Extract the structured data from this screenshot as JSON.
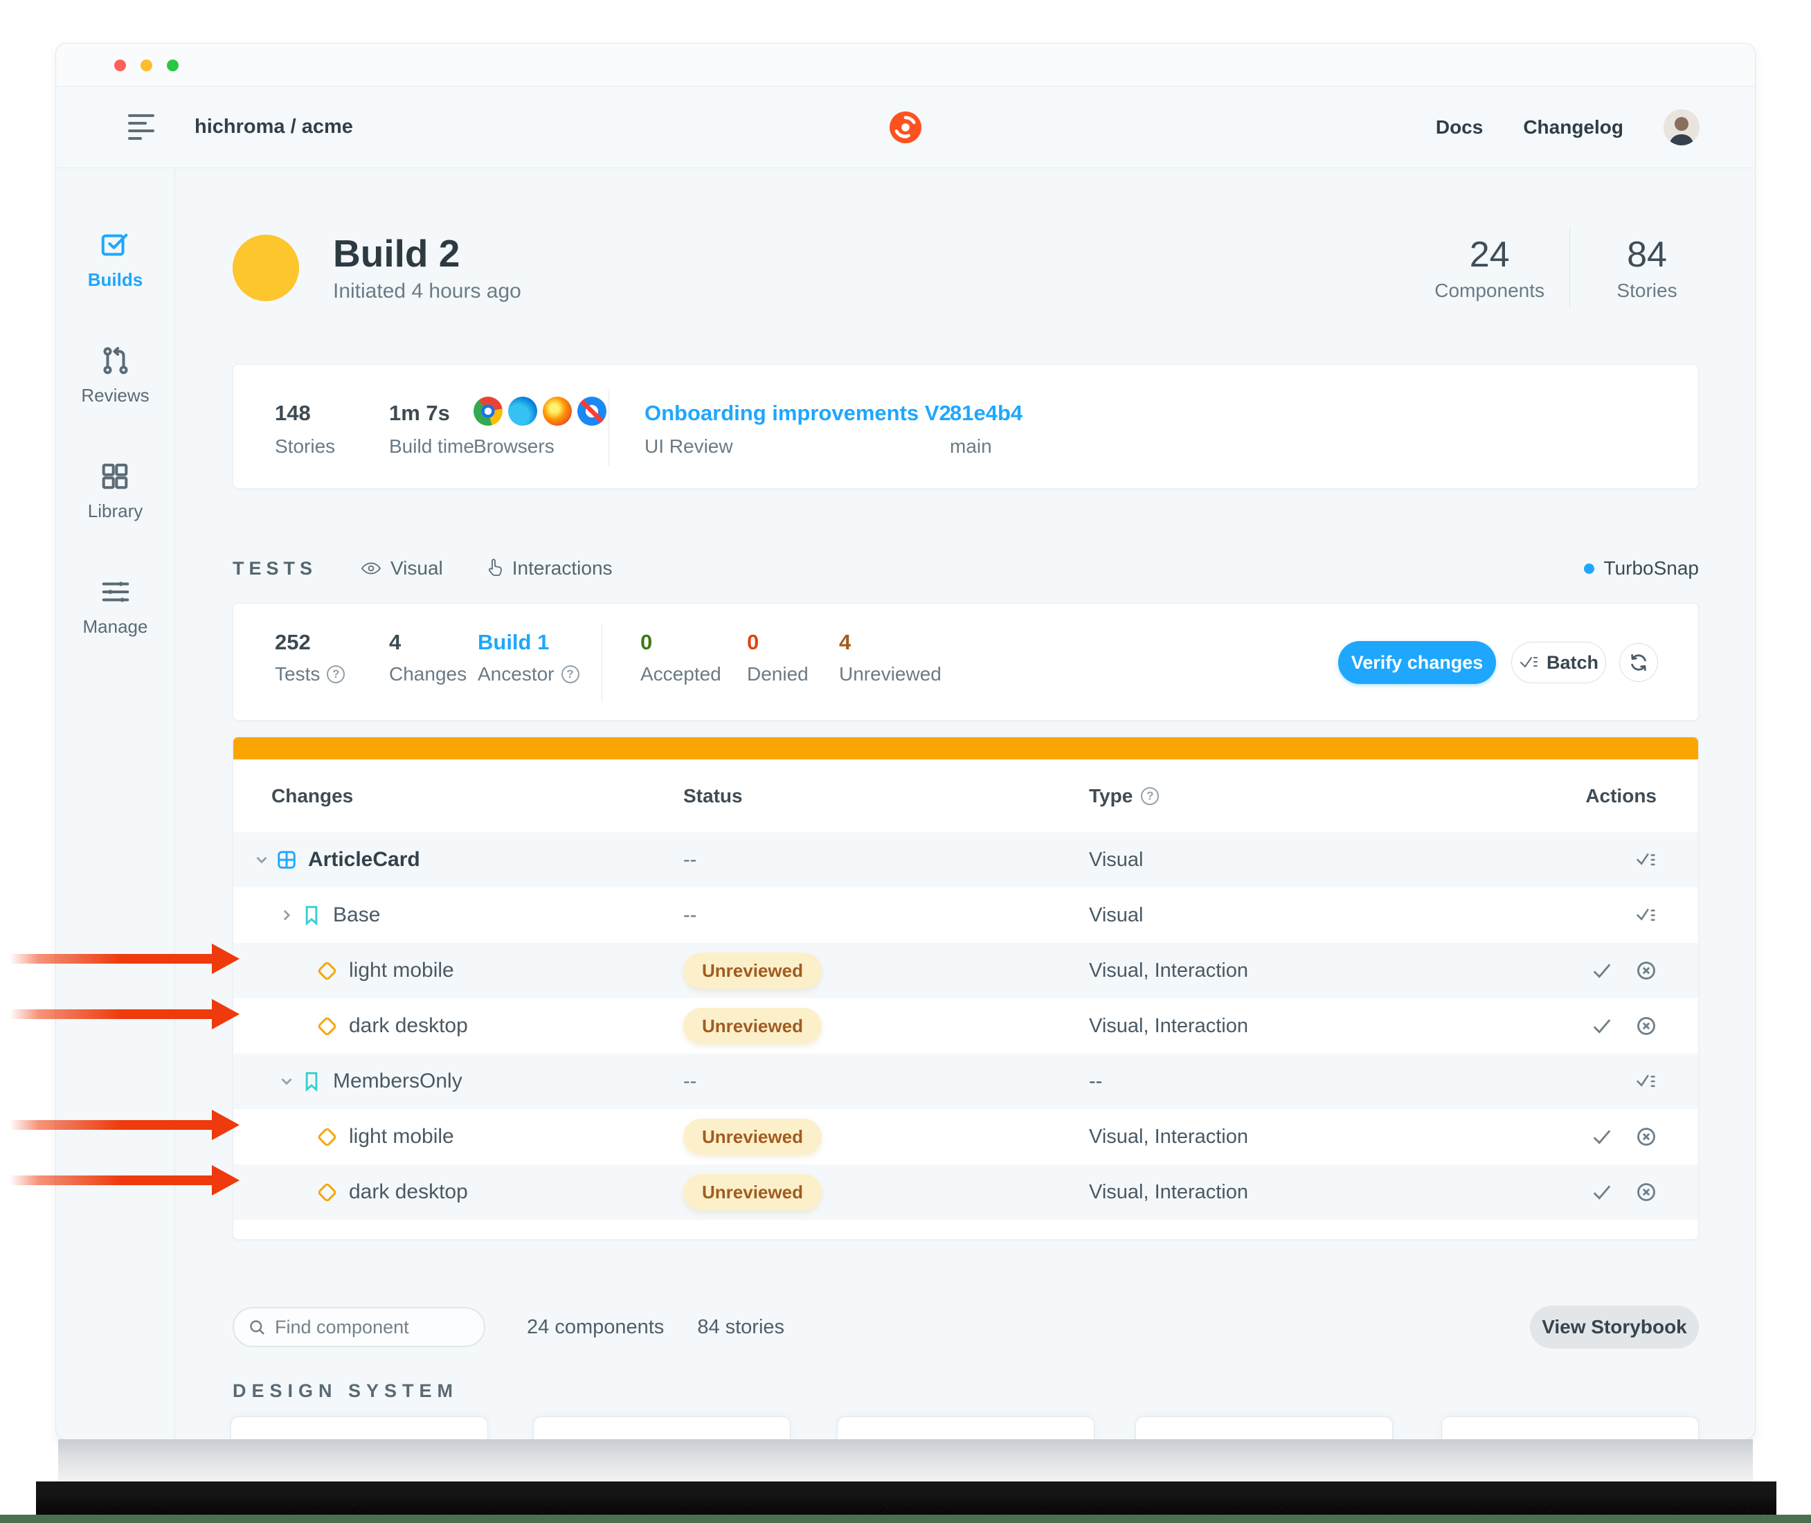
{
  "header": {
    "project": "hichroma / acme",
    "docs": "Docs",
    "changelog": "Changelog"
  },
  "sidebar": {
    "items": [
      {
        "label": "Builds",
        "icon": "builds-icon",
        "active": true
      },
      {
        "label": "Reviews",
        "icon": "reviews-icon",
        "active": false
      },
      {
        "label": "Library",
        "icon": "library-icon",
        "active": false
      },
      {
        "label": "Manage",
        "icon": "manage-icon",
        "active": false
      }
    ]
  },
  "build": {
    "title": "Build 2",
    "subtitle": "Initiated 4 hours ago",
    "components": {
      "value": "24",
      "label": "Components"
    },
    "stories": {
      "value": "84",
      "label": "Stories"
    }
  },
  "summary": {
    "stories": {
      "value": "148",
      "label": "Stories"
    },
    "build_time": {
      "value": "1m 7s",
      "label": "Build time"
    },
    "browsers": {
      "label": "Browsers",
      "icons": [
        "chrome-icon",
        "edge-icon",
        "firefox-icon",
        "safari-icon"
      ]
    },
    "review": {
      "title": "Onboarding improvements V2",
      "label": "UI Review"
    },
    "commit": {
      "hash": "81e4b4",
      "branch": "main"
    }
  },
  "tests": {
    "heading": "TESTS",
    "visual": "Visual",
    "interactions": "Interactions",
    "turbosnap": "TurboSnap",
    "stats": {
      "tests": {
        "value": "252",
        "label": "Tests"
      },
      "changes": {
        "value": "4",
        "label": "Changes"
      },
      "ancestor": {
        "value": "Build 1",
        "label": "Ancestor"
      },
      "accepted": {
        "value": "0",
        "label": "Accepted"
      },
      "denied": {
        "value": "0",
        "label": "Denied"
      },
      "unreviewed": {
        "value": "4",
        "label": "Unreviewed"
      }
    },
    "verify_button": "Verify changes",
    "batch_button": "Batch"
  },
  "table": {
    "columns": {
      "changes": "Changes",
      "status": "Status",
      "type": "Type",
      "actions": "Actions"
    },
    "unreviewed_badge": "Unreviewed",
    "rows": [
      {
        "name": "ArticleCard",
        "kind": "component",
        "chevron": "down",
        "status": "--",
        "type": "Visual",
        "actions": "batch",
        "arrow": false
      },
      {
        "name": "Base",
        "kind": "story",
        "chevron": "right",
        "status": "--",
        "type": "Visual",
        "actions": "batch",
        "arrow": false
      },
      {
        "name": "light mobile",
        "kind": "mode",
        "chevron": "",
        "status": "Unreviewed",
        "type": "Visual, Interaction",
        "actions": "review",
        "arrow": true
      },
      {
        "name": "dark desktop",
        "kind": "mode",
        "chevron": "",
        "status": "Unreviewed",
        "type": "Visual, Interaction",
        "actions": "review",
        "arrow": true
      },
      {
        "name": "MembersOnly",
        "kind": "story",
        "chevron": "down",
        "status": "--",
        "type": "--",
        "actions": "batch",
        "arrow": false
      },
      {
        "name": "light mobile",
        "kind": "mode",
        "chevron": "",
        "status": "Unreviewed",
        "type": "Visual, Interaction",
        "actions": "review",
        "arrow": true
      },
      {
        "name": "dark desktop",
        "kind": "mode",
        "chevron": "",
        "status": "Unreviewed",
        "type": "Visual, Interaction",
        "actions": "review",
        "arrow": true
      }
    ]
  },
  "footer": {
    "search_placeholder": "Find component",
    "components_count": "24 components",
    "stories_count": "84 stories",
    "storybook_button": "View Storybook",
    "section_heading": "DESIGN SYSTEM"
  },
  "colors": {
    "accent": "#1EA7FD",
    "brand": "#FC521F",
    "progress": "#FAA602",
    "positive": "#3C7A16",
    "negative": "#E1440E",
    "warning": "#A15C1F",
    "badge_bg": "#FCF0CB",
    "arrow": "#EE3A0C"
  }
}
